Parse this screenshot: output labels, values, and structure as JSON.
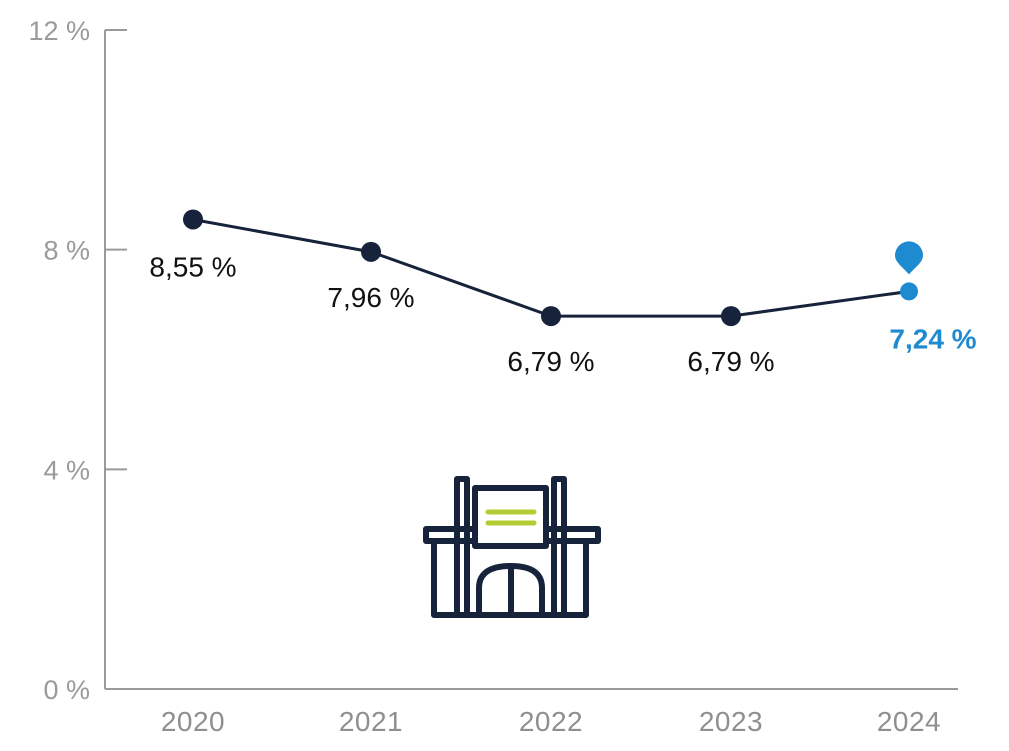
{
  "chart_data": {
    "type": "line",
    "categories": [
      "2020",
      "2021",
      "2022",
      "2023",
      "2024"
    ],
    "series": [
      {
        "values": [
          8.55,
          7.96,
          6.79,
          6.79,
          7.24
        ]
      }
    ],
    "data_labels": [
      "8,55 %",
      "7,96 %",
      "6,79 %",
      "6,79 %",
      "7,24 %"
    ],
    "y_ticks": [
      {
        "value": 0,
        "label": "0 %"
      },
      {
        "value": 4,
        "label": "4 %"
      },
      {
        "value": 8,
        "label": "8 %"
      },
      {
        "value": 12,
        "label": "12 %"
      }
    ],
    "ylim": [
      0,
      12
    ],
    "grid": false,
    "highlight_index": 4,
    "colors": {
      "line": "#17223b",
      "axis": "#9a9a9a",
      "highlight": "#1e8ad0",
      "icon_accent": "#b5cc34"
    },
    "icons": [
      "location-pin-icon",
      "building-icon"
    ]
  }
}
